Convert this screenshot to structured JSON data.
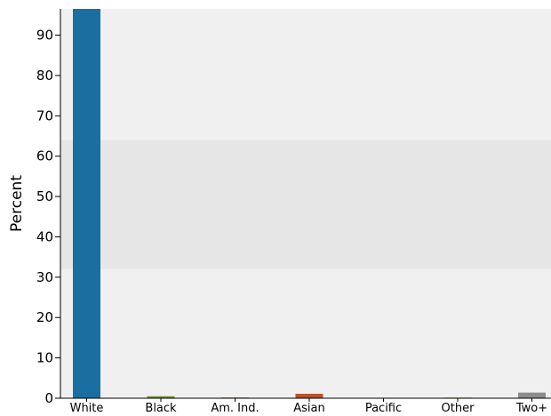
{
  "chart_data": {
    "type": "bar",
    "title": "",
    "xlabel": "",
    "ylabel": "Percent",
    "ylim": [
      0,
      96.5
    ],
    "yticks": [
      0,
      10,
      20,
      30,
      40,
      50,
      60,
      70,
      80,
      90
    ],
    "categories": [
      "White",
      "Black",
      "Am. Ind.",
      "Asian",
      "Pacific",
      "Other",
      "Two+"
    ],
    "values": [
      96.5,
      0.5,
      0.2,
      1.1,
      0.0,
      0.2,
      1.4
    ],
    "colors": [
      "#1a6fa0",
      "#6a9a3a",
      "#e08a2e",
      "#b5522a",
      "#8a7cb8",
      "#e8c040",
      "#8c8c8c"
    ],
    "background_bands": [
      {
        "from": 0,
        "to": 32,
        "color": "#f0f0f0"
      },
      {
        "from": 32,
        "to": 64,
        "color": "#e6e6e6"
      },
      {
        "from": 64,
        "to": 96.5,
        "color": "#f0f0f0"
      }
    ],
    "grid": false,
    "legend": "none"
  }
}
